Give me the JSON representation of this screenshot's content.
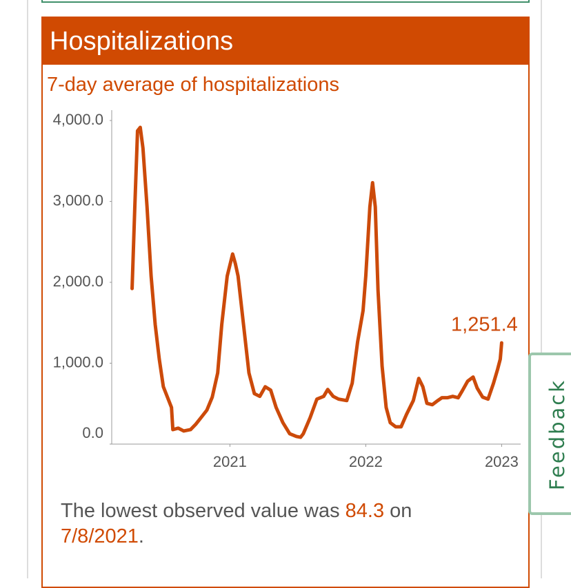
{
  "header": {
    "title": "Hospitalizations"
  },
  "chart_data": {
    "type": "line",
    "title": "7-day average of hospitalizations",
    "x": [
      2020.28,
      2020.3,
      2020.32,
      2020.34,
      2020.36,
      2020.39,
      2020.42,
      2020.45,
      2020.48,
      2020.51,
      2020.54,
      2020.57,
      2020.58,
      2020.62,
      2020.66,
      2020.71,
      2020.75,
      2020.79,
      2020.83,
      2020.87,
      2020.91,
      2020.94,
      2020.98,
      2021.02,
      2021.04,
      2021.06,
      2021.1,
      2021.14,
      2021.18,
      2021.22,
      2021.26,
      2021.3,
      2021.34,
      2021.39,
      2021.44,
      2021.49,
      2021.52,
      2021.54,
      2021.59,
      2021.64,
      2021.69,
      2021.72,
      2021.76,
      2021.8,
      2021.86,
      2021.9,
      2021.94,
      2021.98,
      2022.0,
      2022.03,
      2022.05,
      2022.07,
      2022.09,
      2022.12,
      2022.15,
      2022.18,
      2022.22,
      2022.26,
      2022.3,
      2022.35,
      2022.39,
      2022.42,
      2022.45,
      2022.49,
      2022.53,
      2022.56,
      2022.6,
      2022.64,
      2022.68,
      2022.71,
      2022.75,
      2022.79,
      2022.82,
      2022.86,
      2022.9,
      2022.94,
      2022.97,
      2022.99,
      2023.0
    ],
    "series": [
      {
        "color": "#cc4a0a",
        "values": [
          1923,
          2932,
          3872,
          3915,
          3658,
          2932,
          2077,
          1479,
          1051,
          709,
          581,
          453,
          179,
          197,
          162,
          179,
          248,
          333,
          419,
          581,
          880,
          1479,
          2077,
          2350,
          2231,
          2077,
          1479,
          880,
          624,
          590,
          709,
          667,
          453,
          265,
          128,
          94,
          84.3,
          128,
          325,
          556,
          590,
          675,
          590,
          556,
          538,
          752,
          1265,
          1650,
          2077,
          2932,
          3231,
          2932,
          1906,
          966,
          453,
          265,
          214,
          214,
          368,
          538,
          812,
          709,
          504,
          487,
          538,
          573,
          573,
          590,
          573,
          658,
          778,
          829,
          692,
          581,
          556,
          752,
          923,
          1051,
          1251.4
        ],
        "value_labels": [
          null,
          null,
          null,
          null,
          null,
          null,
          null,
          null,
          null,
          null,
          null,
          null,
          null,
          null,
          null,
          null,
          null,
          null,
          null,
          null,
          null,
          null,
          null,
          null,
          null,
          null,
          null,
          null,
          null,
          null,
          null,
          null,
          null,
          null,
          null,
          null,
          null,
          null,
          null,
          null,
          null,
          null,
          null,
          null,
          null,
          null,
          null,
          null,
          null,
          null,
          null,
          null,
          null,
          null,
          null,
          null,
          null,
          null,
          null,
          null,
          null,
          null,
          null,
          null,
          null,
          null,
          null,
          null,
          null,
          null,
          null,
          null,
          null,
          null,
          null,
          null,
          null,
          null,
          "1,251.4"
        ]
      }
    ],
    "xlim": [
      2020.13,
      2023.14
    ],
    "xticks": [
      2021,
      2022,
      2023
    ],
    "ylim": [
      0,
      4128
    ],
    "yticks": [
      {
        "value": 0,
        "label": "0.0"
      },
      {
        "value": 1000,
        "label": "1,000.0"
      },
      {
        "value": 2000,
        "label": "2,000.0"
      },
      {
        "value": 3000,
        "label": "3,000.0"
      },
      {
        "value": 4000,
        "label": "4,000.0"
      }
    ]
  },
  "footer": {
    "prefix": "The lowest observed value was ",
    "value": "84.3",
    "middle": " on",
    "date": "7/8/2021",
    "suffix": "."
  },
  "feedback": {
    "label": "Feedback"
  }
}
